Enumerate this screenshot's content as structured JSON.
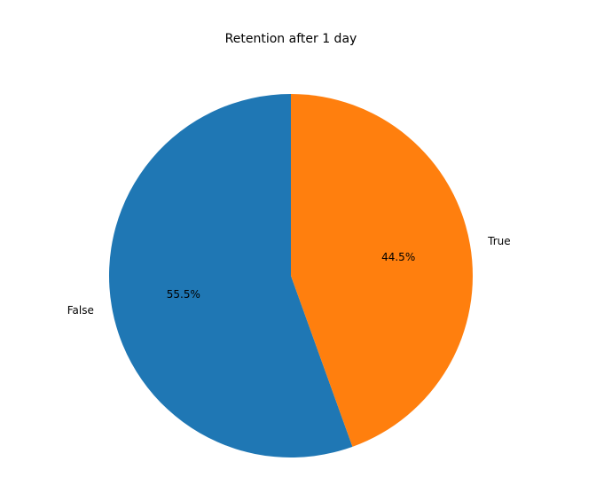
{
  "chart_data": {
    "type": "pie",
    "title": "Retention after 1 day",
    "slices": [
      {
        "label": "False",
        "value": 55.5,
        "pct_label": "55.5%",
        "color": "#1f77b4"
      },
      {
        "label": "True",
        "value": 44.5,
        "pct_label": "44.5%",
        "color": "#ff7f0e"
      }
    ],
    "start_angle_deg": 90,
    "direction": "counterclockwise"
  }
}
